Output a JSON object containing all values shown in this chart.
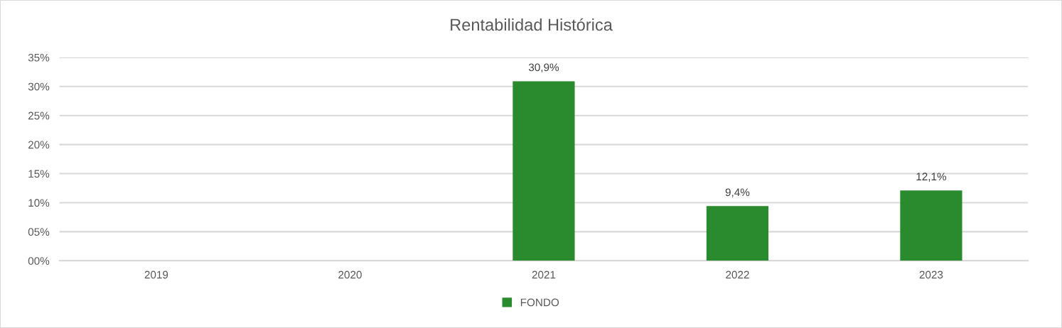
{
  "chart_data": {
    "type": "bar",
    "title": "Rentabilidad Histórica",
    "categories": [
      "2019",
      "2020",
      "2021",
      "2022",
      "2023"
    ],
    "series": [
      {
        "name": "FONDO",
        "color": "#2a8a2e",
        "values": [
          null,
          null,
          30.9,
          9.4,
          12.1
        ],
        "value_labels": [
          null,
          null,
          "30,9%",
          "9,4%",
          "12,1%"
        ]
      }
    ],
    "ylim": [
      0,
      35
    ],
    "yticks": [
      {
        "value": 0,
        "label": "00%"
      },
      {
        "value": 5,
        "label": "05%"
      },
      {
        "value": 10,
        "label": "10%"
      },
      {
        "value": 15,
        "label": "15%"
      },
      {
        "value": 20,
        "label": "20%"
      },
      {
        "value": 25,
        "label": "25%"
      },
      {
        "value": 30,
        "label": "30%"
      },
      {
        "value": 35,
        "label": "35%"
      }
    ],
    "grid": "y",
    "legend": "bottom"
  }
}
